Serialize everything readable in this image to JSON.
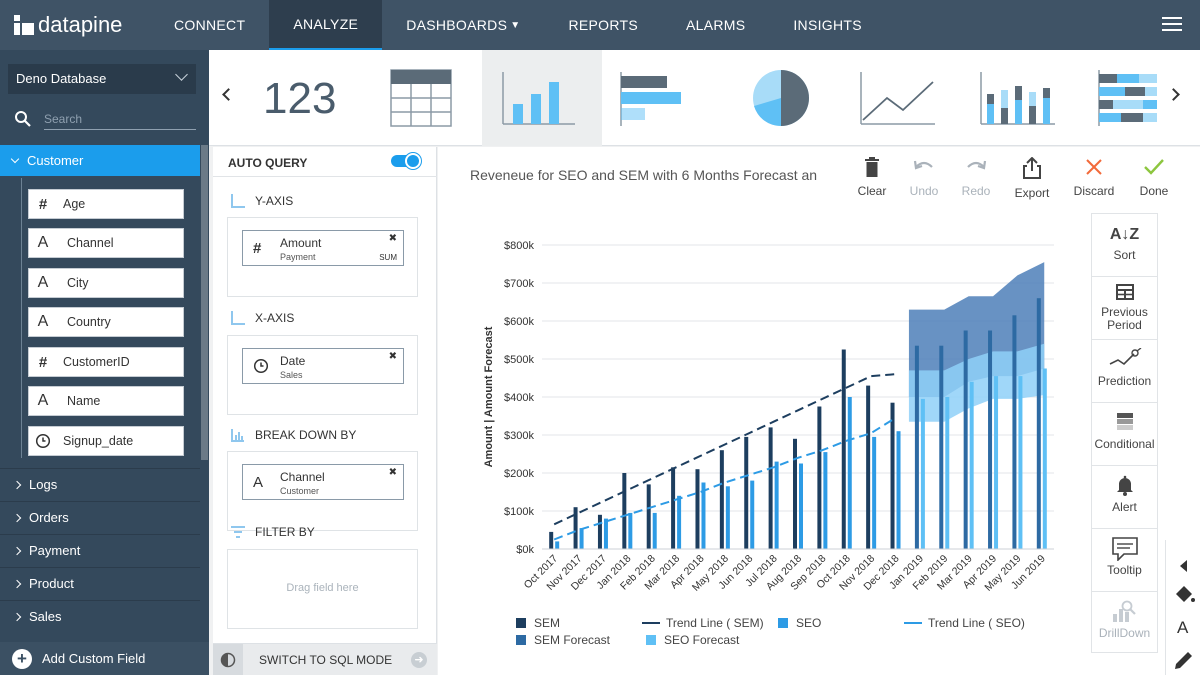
{
  "app": {
    "brand": "datapine",
    "nav": [
      {
        "label": "CONNECT",
        "active": false
      },
      {
        "label": "ANALYZE",
        "active": true
      },
      {
        "label": "DASHBOARDS",
        "active": false,
        "dropdown": true
      },
      {
        "label": "REPORTS",
        "active": false
      },
      {
        "label": "ALARMS",
        "active": false
      },
      {
        "label": "INSIGHTS",
        "active": false
      }
    ],
    "accent": "#1b9dec"
  },
  "sidebar": {
    "database": "Deno Database",
    "search_placeholder": "Search",
    "active_table": "Customer",
    "fields": [
      {
        "type": "#",
        "name": "Age"
      },
      {
        "type": "A",
        "name": "Channel"
      },
      {
        "type": "A",
        "name": "City"
      },
      {
        "type": "A",
        "name": "Country"
      },
      {
        "type": "#",
        "name": "CustomerID"
      },
      {
        "type": "A",
        "name": "Name"
      },
      {
        "type": "clock",
        "name": "Signup_date"
      }
    ],
    "tables": [
      "Logs",
      "Orders",
      "Payment",
      "Product",
      "Sales"
    ],
    "add_custom_field": "Add Custom Field"
  },
  "typebar": {
    "number_label": "123",
    "selected": "bar"
  },
  "query": {
    "auto_query": "AUTO QUERY",
    "auto_query_on": true,
    "y_axis": {
      "title": "Y-AXIS",
      "field": "Amount",
      "source": "Payment",
      "agg": "SUM"
    },
    "x_axis": {
      "title": "X-AXIS",
      "field": "Date",
      "source": "Sales"
    },
    "breakdown": {
      "title": "BREAK DOWN BY",
      "field": "Channel",
      "source": "Customer"
    },
    "filter": {
      "title": "FILTER BY",
      "hint": "Drag field here"
    },
    "sql_mode": "SWITCH TO SQL MODE"
  },
  "chart_panel": {
    "title": "Reveneue for SEO and SEM with 6 Months Forecast an",
    "tools": [
      {
        "label": "Clear",
        "icon": "trash-icon",
        "enabled": true
      },
      {
        "label": "Undo",
        "icon": "undo-icon",
        "enabled": false
      },
      {
        "label": "Redo",
        "icon": "redo-icon",
        "enabled": false
      },
      {
        "label": "Export",
        "icon": "export-icon",
        "enabled": true
      },
      {
        "label": "Discard",
        "icon": "close-icon",
        "enabled": true
      },
      {
        "label": "Done",
        "icon": "check-icon",
        "enabled": true
      }
    ],
    "side_tools": [
      {
        "label": "Sort",
        "icon": "sort-az-icon",
        "enabled": true
      },
      {
        "label": "Previous Period",
        "icon": "calendar-grid-icon",
        "enabled": true
      },
      {
        "label": "Prediction",
        "icon": "prediction-icon",
        "enabled": true
      },
      {
        "label": "Conditional",
        "icon": "conditional-icon",
        "enabled": true
      },
      {
        "label": "Alert",
        "icon": "bell-icon",
        "enabled": true
      },
      {
        "label": "Tooltip",
        "icon": "tooltip-icon",
        "enabled": true
      },
      {
        "label": "DrillDown",
        "icon": "drilldown-icon",
        "enabled": false
      }
    ]
  },
  "chart_data": {
    "type": "bar",
    "title": "Reveneue for SEO and SEM with 6 Months Forecast an",
    "ylabel": "Amount | Amount Forecast",
    "xlabel": "",
    "ylim": [
      0,
      800000
    ],
    "yticks": [
      "$0k",
      "$100k",
      "$200k",
      "$300k",
      "$400k",
      "$500k",
      "$600k",
      "$700k",
      "$800k"
    ],
    "categories": [
      "Oct 2017",
      "Nov 2017",
      "Dec 2017",
      "Jan 2018",
      "Feb 2018",
      "Mar 2018",
      "Apr 2018",
      "May 2018",
      "Jun 2018",
      "Jul 2018",
      "Aug 2018",
      "Sep 2018",
      "Oct 2018",
      "Nov 2018",
      "Dec 2018",
      "Jan 2019",
      "Feb 2019",
      "Mar 2019",
      "Apr 2019",
      "May 2019",
      "Jun 2019"
    ],
    "grid": true,
    "legend_position": "bottom",
    "series": [
      {
        "name": "SEM",
        "kind": "bar",
        "color": "#1d3e5f",
        "values": [
          45000,
          110000,
          90000,
          200000,
          170000,
          215000,
          210000,
          260000,
          295000,
          320000,
          290000,
          375000,
          525000,
          430000,
          385000,
          null,
          null,
          null,
          null,
          null,
          null
        ]
      },
      {
        "name": "SEO",
        "kind": "bar",
        "color": "#2d9be5",
        "values": [
          20000,
          55000,
          80000,
          95000,
          95000,
          140000,
          175000,
          165000,
          180000,
          230000,
          225000,
          255000,
          400000,
          295000,
          310000,
          null,
          null,
          null,
          null,
          null,
          null
        ]
      },
      {
        "name": "SEM Forecast",
        "kind": "bar",
        "color": "#2d6aa3",
        "values": [
          null,
          null,
          null,
          null,
          null,
          null,
          null,
          null,
          null,
          null,
          null,
          null,
          null,
          null,
          null,
          535000,
          535000,
          575000,
          575000,
          615000,
          660000
        ]
      },
      {
        "name": "SEO Forecast",
        "kind": "bar",
        "color": "#5fc0f5",
        "values": [
          null,
          null,
          null,
          null,
          null,
          null,
          null,
          null,
          null,
          null,
          null,
          null,
          null,
          null,
          null,
          395000,
          400000,
          440000,
          455000,
          455000,
          475000
        ]
      },
      {
        "name": "Trend Line ( SEM)",
        "kind": "line",
        "dash": true,
        "color": "#1d3e5f",
        "values": [
          65000,
          95000,
          125000,
          155000,
          185000,
          215000,
          245000,
          275000,
          305000,
          335000,
          365000,
          395000,
          425000,
          455000,
          460000,
          null,
          null,
          null,
          null,
          null,
          null
        ]
      },
      {
        "name": "Trend Line ( SEO)",
        "kind": "line",
        "dash": true,
        "color": "#2d9be5",
        "values": [
          25000,
          50000,
          70000,
          90000,
          110000,
          130000,
          150000,
          175000,
          195000,
          215000,
          240000,
          260000,
          285000,
          305000,
          345000,
          null,
          null,
          null,
          null,
          null,
          null
        ]
      }
    ],
    "forecast_bands": [
      {
        "name": "SEM Forecast band",
        "color": "#4d7fb8",
        "lower": [
          400000,
          400000,
          440000,
          455000,
          455000,
          475000
        ],
        "upper": [
          630000,
          630000,
          665000,
          665000,
          720000,
          755000
        ]
      },
      {
        "name": "SEO Forecast band",
        "color": "#8fd0f8",
        "lower": [
          335000,
          335000,
          370000,
          395000,
          395000,
          405000
        ],
        "upper": [
          470000,
          470000,
          500000,
          520000,
          520000,
          540000
        ]
      }
    ],
    "legend": [
      {
        "name": "SEM",
        "marker": "square",
        "color": "#1d3e5f"
      },
      {
        "name": "Trend Line ( SEM)",
        "marker": "dash",
        "color": "#1d3e5f"
      },
      {
        "name": "SEO",
        "marker": "square",
        "color": "#2d9be5"
      },
      {
        "name": "Trend Line ( SEO)",
        "marker": "dash",
        "color": "#2d9be5"
      },
      {
        "name": "SEM Forecast",
        "marker": "square",
        "color": "#2d6aa3"
      },
      {
        "name": "SEO Forecast",
        "marker": "square",
        "color": "#5fc0f5"
      }
    ]
  }
}
